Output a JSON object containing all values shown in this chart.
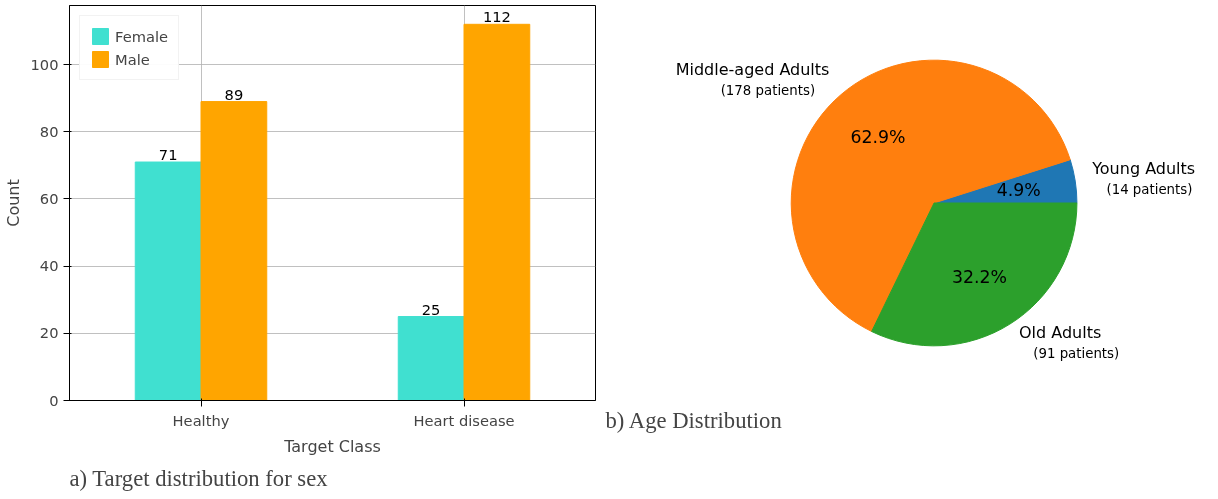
{
  "chart_data": [
    {
      "type": "bar",
      "title": "a) Target distribution for sex",
      "xlabel": "Target Class",
      "ylabel": "Count",
      "categories": [
        "Healthy",
        "Heart disease"
      ],
      "series": [
        {
          "name": "Female",
          "color": "#40e0d0",
          "values": [
            71,
            25
          ]
        },
        {
          "name": "Male",
          "color": "#ffa500",
          "values": [
            89,
            112
          ]
        }
      ],
      "ylim": [
        0,
        117.6
      ],
      "yticks": [
        0,
        20,
        40,
        60,
        80,
        100
      ],
      "grid": true,
      "legend": "top left",
      "data_labels": true
    },
    {
      "type": "pie",
      "title": "b) Age Distribution",
      "categories": [
        "Young Adults",
        "Middle-aged Adults",
        "Old Adults"
      ],
      "values": [
        4.9,
        62.9,
        32.2
      ],
      "colors": [
        "#1f77b4",
        "#ff7f0e",
        "#2ca02c"
      ],
      "value_labels": [
        "4.9%",
        "62.9%",
        "32.2%"
      ],
      "annotations": [
        "(14 patients)",
        "(178 patients)",
        "(91 patients)"
      ]
    }
  ]
}
